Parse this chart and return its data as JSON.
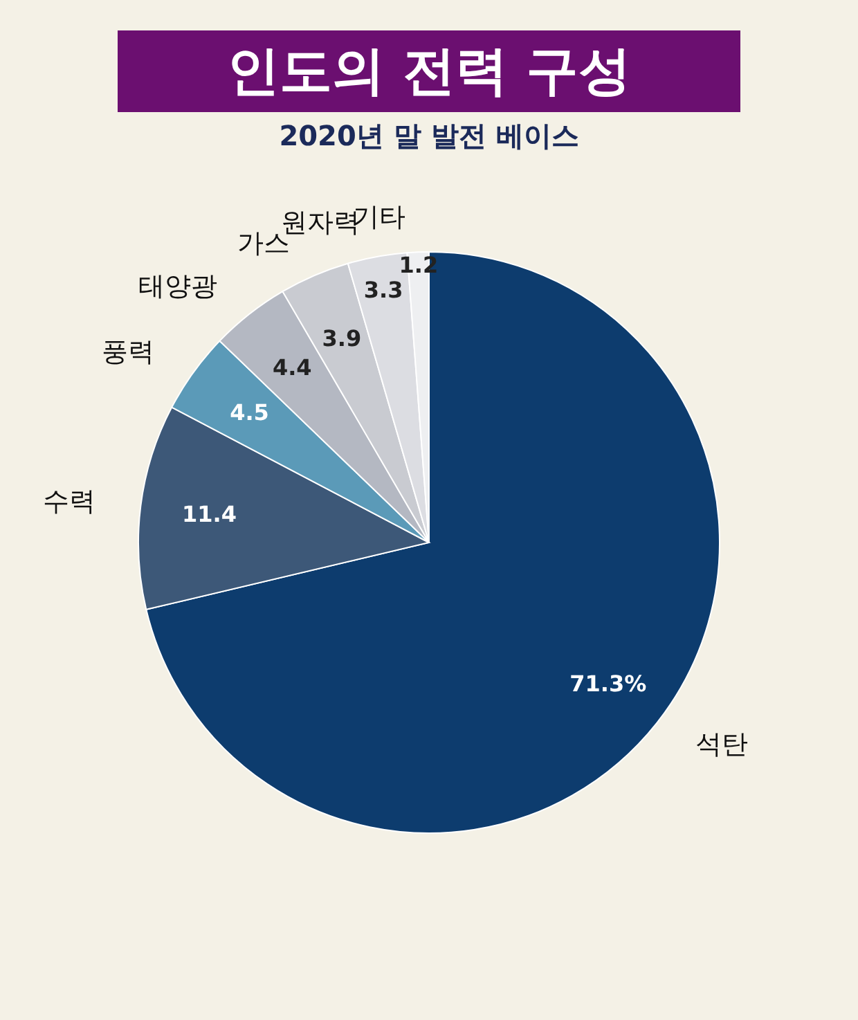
{
  "chart_data": {
    "type": "pie",
    "title": "인도의 전력 구성",
    "subtitle": "2020년 말 발전 베이스",
    "categories": [
      "석탄",
      "수력",
      "풍력",
      "태양광",
      "가스",
      "원자력",
      "기타"
    ],
    "values": [
      71.3,
      11.4,
      4.5,
      4.4,
      3.9,
      3.3,
      1.2
    ],
    "value_labels": [
      "71.3%",
      "11.4",
      "4.5",
      "4.4",
      "3.9",
      "3.3",
      "1.2"
    ],
    "colors": [
      "#0d3c6e",
      "#3d5878",
      "#5b9ab8",
      "#b4b8c2",
      "#c9cbd1",
      "#dcdde2",
      "#eeeff1"
    ]
  }
}
